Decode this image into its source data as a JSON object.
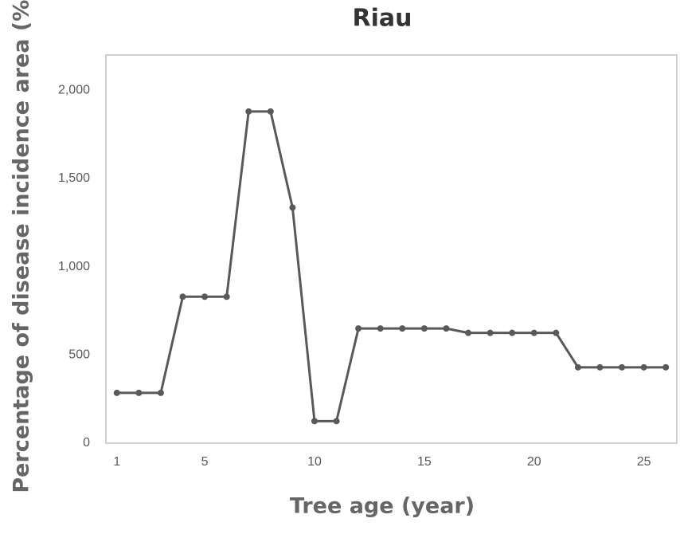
{
  "chart_data": {
    "type": "line",
    "title": "Riau",
    "x_label": "Tree age (year)",
    "y_label": "Percentage of disease incidence area (%)",
    "x": [
      1,
      2,
      3,
      4,
      5,
      6,
      7,
      8,
      9,
      10,
      11,
      12,
      13,
      14,
      15,
      16,
      17,
      18,
      19,
      20,
      21,
      22,
      23,
      24,
      25,
      26
    ],
    "series": [
      {
        "name": "Riau",
        "color": "#595959",
        "values": [
          285,
          285,
          285,
          830,
          830,
          830,
          1880,
          1880,
          1335,
          125,
          125,
          650,
          650,
          650,
          650,
          650,
          625,
          625,
          625,
          625,
          625,
          430,
          430,
          430,
          430,
          430
        ]
      }
    ],
    "xlim": [
      0.5,
      26.5
    ],
    "xticks": [
      1,
      5,
      10,
      15,
      20,
      25
    ],
    "ylim": [
      0,
      2200
    ],
    "yticks": [
      0,
      500,
      {
        "value": 1000,
        "label": "1,000"
      },
      {
        "value": 1500,
        "label": "1,500"
      },
      {
        "value": 2000,
        "label": "2,000"
      }
    ]
  }
}
